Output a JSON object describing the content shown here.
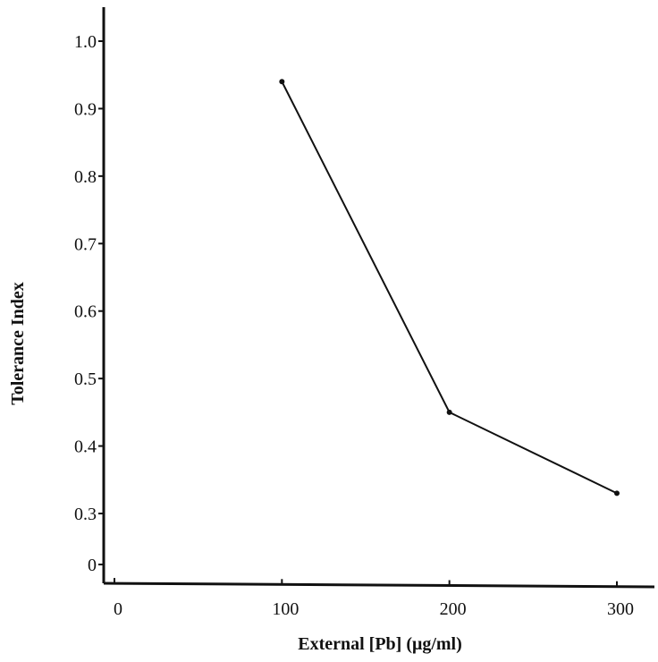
{
  "chart_data": {
    "type": "line",
    "title": "",
    "xlabel": "External [Pb] (μg/ml)",
    "ylabel": "Tolerance Index",
    "x_ticks": [
      {
        "value": 0,
        "label": "0"
      },
      {
        "value": 100,
        "label": "100"
      },
      {
        "value": 200,
        "label": "200"
      },
      {
        "value": 300,
        "label": "300"
      }
    ],
    "y_ticks": [
      {
        "value": 0,
        "label": "0"
      },
      {
        "value": 0.3,
        "label": "0.3"
      },
      {
        "value": 0.4,
        "label": "0.4"
      },
      {
        "value": 0.5,
        "label": "0.5"
      },
      {
        "value": 0.6,
        "label": "0.6"
      },
      {
        "value": 0.7,
        "label": "0.7"
      },
      {
        "value": 0.8,
        "label": "0.8"
      },
      {
        "value": 0.9,
        "label": "0.9"
      },
      {
        "value": 1.0,
        "label": "1.0"
      }
    ],
    "y_axis_break": "between 0 and 0.3",
    "series": [
      {
        "x": [
          100,
          200,
          300
        ],
        "y": [
          0.94,
          0.45,
          0.33
        ]
      }
    ],
    "grid": false,
    "legend": "none",
    "line_color": "#111111"
  }
}
